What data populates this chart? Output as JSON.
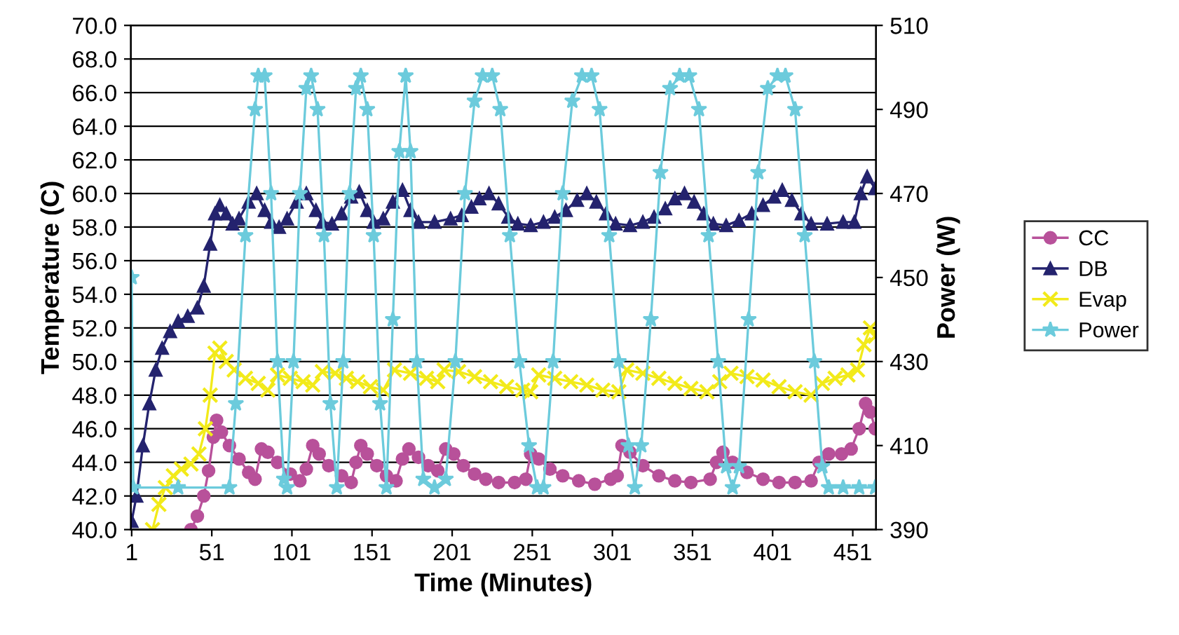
{
  "chart_data": {
    "type": "line",
    "xlabel": "Time (Minutes)",
    "ylabel": "Temperature (C)",
    "y2label": "Power (W)",
    "xlim": [
      0.5,
      465.5
    ],
    "xticks": [
      1,
      51,
      101,
      151,
      201,
      251,
      301,
      351,
      401,
      451
    ],
    "ylim": [
      40,
      70
    ],
    "yticks": [
      {
        "value": 40,
        "label": "40.0"
      },
      {
        "value": 42,
        "label": "42.0"
      },
      {
        "value": 44,
        "label": "44.0"
      },
      {
        "value": 46,
        "label": "46.0"
      },
      {
        "value": 48,
        "label": "48.0"
      },
      {
        "value": 50,
        "label": "50.0"
      },
      {
        "value": 52,
        "label": "52.0"
      },
      {
        "value": 54,
        "label": "54.0"
      },
      {
        "value": 56,
        "label": "56.0"
      },
      {
        "value": 58,
        "label": "58.0"
      },
      {
        "value": 60,
        "label": "60.0"
      },
      {
        "value": 62,
        "label": "62.0"
      },
      {
        "value": 64,
        "label": "64.0"
      },
      {
        "value": 66,
        "label": "66.0"
      },
      {
        "value": 68,
        "label": "68.0"
      },
      {
        "value": 70,
        "label": "70.0"
      }
    ],
    "y2lim": [
      390,
      510
    ],
    "y2ticks": [
      390,
      410,
      430,
      450,
      470,
      490,
      510
    ],
    "grid": "y",
    "legend": "right",
    "line_style": "solid",
    "series": [
      {
        "name": "CC",
        "color": "#b8519a",
        "marker": "circle",
        "x": [
          38,
          42,
          46,
          49,
          52,
          54,
          57,
          62,
          68,
          74,
          78,
          82,
          86,
          92,
          100,
          106,
          110,
          114,
          118,
          124,
          132,
          138,
          141,
          144,
          148,
          154,
          160,
          166,
          170,
          174,
          180,
          186,
          192,
          197,
          202,
          208,
          215,
          222,
          230,
          240,
          247,
          250,
          255,
          262,
          270,
          280,
          290,
          300,
          304,
          307,
          312,
          320,
          330,
          340,
          350,
          362,
          366,
          370,
          376,
          385,
          395,
          405,
          415,
          425,
          430,
          436,
          444,
          450,
          455,
          459,
          462,
          465
        ],
        "values": [
          40,
          40.8,
          42,
          43.5,
          45.5,
          46.5,
          45.8,
          45,
          44.2,
          43.4,
          43,
          44.8,
          44.6,
          44,
          43.3,
          42.9,
          43.6,
          45,
          44.5,
          43.8,
          43.2,
          42.8,
          44,
          45,
          44.5,
          43.8,
          43.2,
          42.9,
          44.2,
          44.8,
          44.3,
          43.8,
          43.5,
          44.8,
          44.5,
          43.8,
          43.3,
          43,
          42.8,
          42.8,
          43,
          44.5,
          44.2,
          43.6,
          43.2,
          42.9,
          42.7,
          43,
          43.2,
          45,
          44.6,
          43.8,
          43.2,
          42.9,
          42.8,
          43,
          44,
          44.6,
          44,
          43.4,
          43,
          42.8,
          42.8,
          42.9,
          44,
          44.5,
          44.5,
          44.8,
          46,
          47.5,
          47,
          46
        ]
      },
      {
        "name": "DB",
        "color": "#24236e",
        "marker": "triangle",
        "x": [
          1,
          4,
          8,
          12,
          16,
          20,
          25,
          30,
          36,
          42,
          46,
          50,
          53,
          56,
          60,
          64,
          68,
          74,
          79,
          84,
          88,
          93,
          98,
          104,
          110,
          116,
          120,
          126,
          132,
          138,
          143,
          148,
          152,
          158,
          164,
          170,
          175,
          180,
          190,
          200,
          207,
          213,
          218,
          224,
          230,
          236,
          242,
          250,
          258,
          265,
          272,
          279,
          285,
          291,
          297,
          303,
          312,
          320,
          327,
          334,
          340,
          346,
          352,
          358,
          364,
          372,
          380,
          388,
          395,
          402,
          407,
          413,
          419,
          425,
          435,
          445,
          452,
          456,
          460,
          465
        ],
        "values": [
          40.5,
          42,
          45,
          47.5,
          49.5,
          50.8,
          51.8,
          52.4,
          52.7,
          53.2,
          54.5,
          57,
          58.8,
          59.3,
          58.8,
          58.2,
          58.5,
          59.5,
          60,
          59,
          58.3,
          58,
          58.5,
          59.5,
          60,
          59,
          58.3,
          58.2,
          58.8,
          59.8,
          60.1,
          59,
          58.3,
          58.5,
          59.5,
          60.2,
          59,
          58.3,
          58.3,
          58.5,
          58.7,
          59.2,
          59.7,
          60,
          59.4,
          58.6,
          58.2,
          58.1,
          58.3,
          58.6,
          59,
          59.6,
          60,
          59.5,
          58.8,
          58.2,
          58.1,
          58.3,
          58.6,
          59.1,
          59.7,
          60,
          59.5,
          58.8,
          58.2,
          58.1,
          58.4,
          58.8,
          59.3,
          59.8,
          60.2,
          59.6,
          58.8,
          58.2,
          58.2,
          58.3,
          58.3,
          60,
          61,
          60.3
        ]
      },
      {
        "name": "Evap",
        "color": "#f2ea1a",
        "marker": "cross",
        "x": [
          14,
          18,
          22,
          27,
          32,
          38,
          43,
          47,
          50,
          53,
          56,
          60,
          65,
          72,
          80,
          86,
          92,
          100,
          108,
          114,
          120,
          128,
          135,
          142,
          150,
          158,
          165,
          175,
          185,
          192,
          196,
          205,
          215,
          225,
          235,
          245,
          250,
          255,
          265,
          275,
          285,
          295,
          305,
          310,
          320,
          330,
          340,
          350,
          360,
          368,
          375,
          385,
          395,
          405,
          415,
          425,
          432,
          440,
          448,
          454,
          458,
          462,
          465
        ],
        "values": [
          40,
          41.5,
          42.5,
          43.2,
          43.6,
          43.9,
          44.5,
          46,
          48,
          50.5,
          50.8,
          50,
          49.5,
          49,
          48.7,
          48.3,
          49.2,
          49,
          48.8,
          48.6,
          49.4,
          49.3,
          49,
          48.8,
          48.5,
          48.3,
          49.5,
          49.3,
          49,
          48.8,
          49.5,
          49.4,
          49.1,
          48.8,
          48.5,
          48.3,
          48.2,
          49.2,
          49,
          48.8,
          48.6,
          48.3,
          48.2,
          49.5,
          49.3,
          49,
          48.7,
          48.4,
          48.2,
          48.8,
          49.3,
          49.1,
          48.9,
          48.5,
          48.2,
          48,
          48.7,
          49,
          49.2,
          49.5,
          51,
          52,
          51.5
        ]
      },
      {
        "name": "Power",
        "color": "#6ccbdc",
        "marker": "star",
        "axis": "y2",
        "x": [
          1,
          2,
          30,
          62,
          66,
          72,
          78,
          80,
          84,
          88,
          92,
          96,
          98,
          102,
          106,
          110,
          113,
          117,
          121,
          125,
          129,
          133,
          137,
          141,
          144,
          148,
          152,
          156,
          160,
          164,
          168,
          172,
          175,
          179,
          183,
          190,
          197,
          203,
          209,
          215,
          220,
          226,
          231,
          237,
          243,
          249,
          254,
          258,
          264,
          270,
          276,
          282,
          288,
          293,
          299,
          305,
          311,
          315,
          319,
          325,
          331,
          337,
          343,
          349,
          355,
          361,
          367,
          372,
          376,
          380,
          386,
          392,
          398,
          404,
          409,
          415,
          421,
          427,
          432,
          436,
          445,
          455,
          465
        ],
        "values": [
          450,
          400,
          400,
          400,
          420,
          460,
          490,
          498,
          498,
          470,
          430,
          402,
          400,
          430,
          470,
          495,
          498,
          490,
          460,
          420,
          400,
          430,
          470,
          495,
          498,
          490,
          460,
          420,
          400,
          440,
          480,
          498,
          480,
          430,
          402,
          400,
          402,
          430,
          470,
          492,
          498,
          498,
          490,
          460,
          430,
          410,
          400,
          400,
          430,
          470,
          492,
          498,
          498,
          490,
          460,
          430,
          410,
          400,
          410,
          440,
          475,
          495,
          498,
          498,
          490,
          460,
          430,
          405,
          400,
          405,
          440,
          475,
          495,
          498,
          498,
          490,
          460,
          430,
          405,
          400,
          400,
          400,
          400
        ]
      }
    ]
  }
}
